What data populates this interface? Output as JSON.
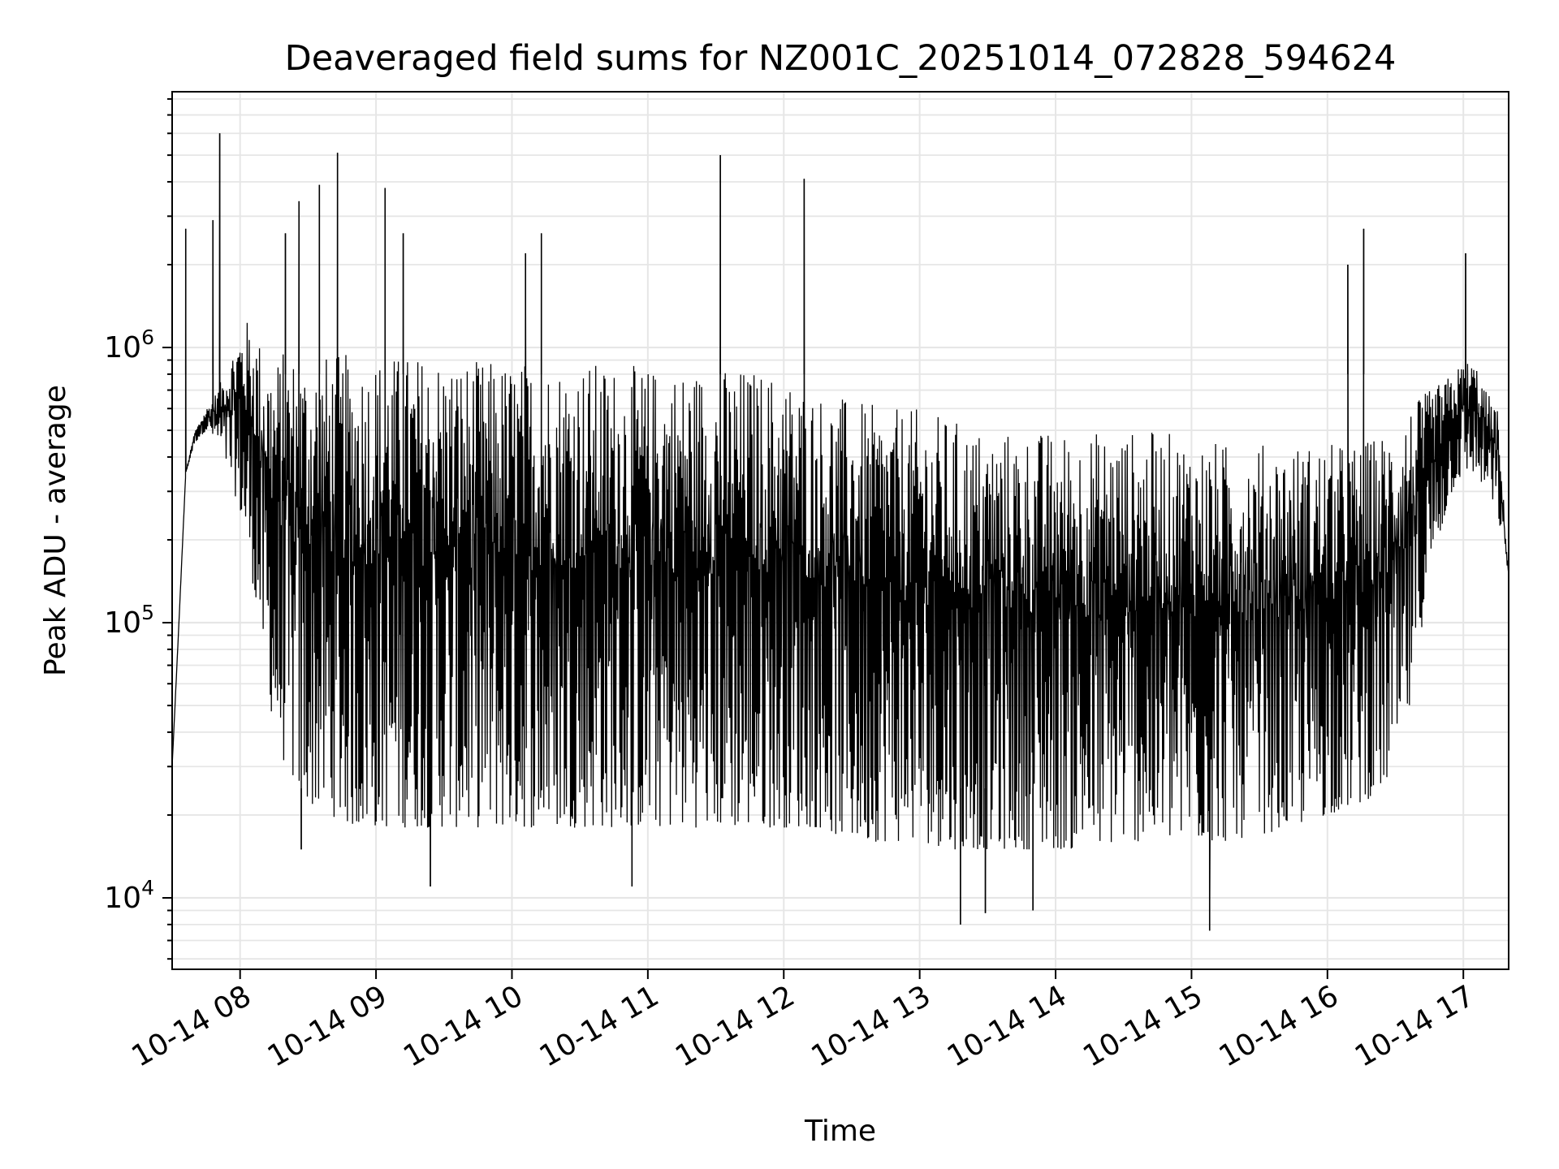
{
  "chart_data": {
    "type": "line",
    "title": "Deaveraged field sums for NZ001C_20251014_072828_594624",
    "xlabel": "Time",
    "ylabel": "Peak ADU - average",
    "y_scale": "log",
    "ylim": [
      5500,
      8500000
    ],
    "xlim": [
      "2025-10-14 07:30",
      "2025-10-14 17:20"
    ],
    "x_ticks": [
      {
        "value": "2025-10-14 08:00",
        "label": "10-14 08"
      },
      {
        "value": "2025-10-14 09:00",
        "label": "10-14 09"
      },
      {
        "value": "2025-10-14 10:00",
        "label": "10-14 10"
      },
      {
        "value": "2025-10-14 11:00",
        "label": "10-14 11"
      },
      {
        "value": "2025-10-14 12:00",
        "label": "10-14 12"
      },
      {
        "value": "2025-10-14 13:00",
        "label": "10-14 13"
      },
      {
        "value": "2025-10-14 14:00",
        "label": "10-14 14"
      },
      {
        "value": "2025-10-14 15:00",
        "label": "10-14 15"
      },
      {
        "value": "2025-10-14 16:00",
        "label": "10-14 16"
      },
      {
        "value": "2025-10-14 17:00",
        "label": "10-14 17"
      }
    ],
    "y_ticks": [
      {
        "value": 10000,
        "base": "10",
        "exp": "4"
      },
      {
        "value": 100000,
        "base": "10",
        "exp": "5"
      },
      {
        "value": 1000000,
        "base": "10",
        "exp": "6"
      }
    ],
    "grid": true,
    "grid_color": "#e6e6e6",
    "line_color": "#000000",
    "series": [
      {
        "x": [
          "2025-10-14 07:30",
          "2025-10-14 07:33",
          "2025-10-14 07:36",
          "2025-10-14 07:40",
          "2025-10-14 07:45",
          "2025-10-14 07:50",
          "2025-10-14 07:55",
          "2025-10-14 08:00",
          "2025-10-14 08:05",
          "2025-10-14 08:10",
          "2025-10-14 08:15",
          "2025-10-14 08:20",
          "2025-10-14 08:25",
          "2025-10-14 08:30",
          "2025-10-14 08:40",
          "2025-10-14 08:50",
          "2025-10-14 09:00",
          "2025-10-14 09:15",
          "2025-10-14 09:30",
          "2025-10-14 09:45",
          "2025-10-14 10:00",
          "2025-10-14 10:15",
          "2025-10-14 10:30",
          "2025-10-14 10:45",
          "2025-10-14 11:00",
          "2025-10-14 11:15",
          "2025-10-14 11:30",
          "2025-10-14 11:45",
          "2025-10-14 12:00",
          "2025-10-14 12:15",
          "2025-10-14 12:30",
          "2025-10-14 12:45",
          "2025-10-14 13:00",
          "2025-10-14 13:15",
          "2025-10-14 13:30",
          "2025-10-14 13:45",
          "2025-10-14 14:00",
          "2025-10-14 14:15",
          "2025-10-14 14:30",
          "2025-10-14 14:45",
          "2025-10-14 15:00",
          "2025-10-14 15:15",
          "2025-10-14 15:30",
          "2025-10-14 15:45",
          "2025-10-14 16:00",
          "2025-10-14 16:15",
          "2025-10-14 16:25",
          "2025-10-14 16:35",
          "2025-10-14 16:45",
          "2025-10-14 16:55",
          "2025-10-14 17:00",
          "2025-10-14 17:05",
          "2025-10-14 17:10",
          "2025-10-14 17:15",
          "2025-10-14 17:20"
        ],
        "upper": [
          30000,
          100000,
          350000,
          500000,
          600000,
          700000,
          900000,
          1200000,
          1300000,
          1000000,
          900000,
          1000000,
          950000,
          950000,
          950000,
          950000,
          950000,
          950000,
          950000,
          900000,
          900000,
          900000,
          900000,
          880000,
          850000,
          850000,
          850000,
          850000,
          800000,
          700000,
          650000,
          600000,
          600000,
          550000,
          500000,
          500000,
          500000,
          500000,
          500000,
          500000,
          480000,
          450000,
          450000,
          450000,
          450000,
          450000,
          500000,
          600000,
          700000,
          800000,
          900000,
          900000,
          700000,
          600000,
          150000
        ],
        "lower": [
          30000,
          100000,
          350000,
          450000,
          500000,
          450000,
          350000,
          250000,
          150000,
          80000,
          40000,
          30000,
          25000,
          22000,
          20000,
          18000,
          18000,
          18000,
          18000,
          18000,
          18000,
          18000,
          18000,
          18000,
          18000,
          18000,
          18000,
          18000,
          18000,
          18000,
          16000,
          16000,
          16000,
          15000,
          15000,
          15000,
          15000,
          15000,
          16000,
          16000,
          16000,
          16000,
          17000,
          18000,
          20000,
          22000,
          25000,
          40000,
          150000,
          300000,
          350000,
          350000,
          300000,
          250000,
          150000
        ],
        "spikes": [
          {
            "x": "2025-10-14 07:36",
            "y": 2700000
          },
          {
            "x": "2025-10-14 07:48",
            "y": 2900000
          },
          {
            "x": "2025-10-14 07:51",
            "y": 6000000
          },
          {
            "x": "2025-10-14 08:20",
            "y": 2600000
          },
          {
            "x": "2025-10-14 08:26",
            "y": 3400000
          },
          {
            "x": "2025-10-14 08:35",
            "y": 3900000
          },
          {
            "x": "2025-10-14 08:43",
            "y": 5100000
          },
          {
            "x": "2025-10-14 09:04",
            "y": 3800000
          },
          {
            "x": "2025-10-14 09:12",
            "y": 2600000
          },
          {
            "x": "2025-10-14 10:06",
            "y": 2200000
          },
          {
            "x": "2025-10-14 10:13",
            "y": 2600000
          },
          {
            "x": "2025-10-14 11:32",
            "y": 5000000
          },
          {
            "x": "2025-10-14 12:09",
            "y": 4100000
          },
          {
            "x": "2025-10-14 16:09",
            "y": 2000000
          },
          {
            "x": "2025-10-14 16:16",
            "y": 2700000
          },
          {
            "x": "2025-10-14 17:01",
            "y": 2200000
          }
        ],
        "dips": [
          {
            "x": "2025-10-14 08:27",
            "y": 15000
          },
          {
            "x": "2025-10-14 09:24",
            "y": 11000
          },
          {
            "x": "2025-10-14 10:53",
            "y": 11000
          },
          {
            "x": "2025-10-14 13:18",
            "y": 8000
          },
          {
            "x": "2025-10-14 13:29",
            "y": 8800
          },
          {
            "x": "2025-10-14 13:50",
            "y": 9000
          },
          {
            "x": "2025-10-14 15:08",
            "y": 7600
          }
        ]
      }
    ]
  }
}
